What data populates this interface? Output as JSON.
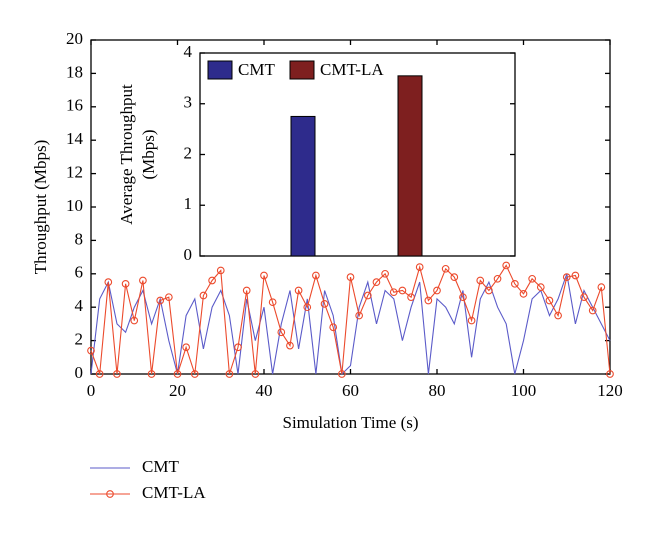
{
  "chart_data": [
    {
      "type": "line",
      "xlabel": "Simulation Time (s)",
      "ylabel": "Throughput (Mbps)",
      "xlim": [
        0,
        120
      ],
      "xticks": [
        0,
        20,
        40,
        60,
        80,
        100,
        120
      ],
      "ylim": [
        0,
        20
      ],
      "yticks": [
        0,
        2,
        4,
        6,
        8,
        10,
        12,
        14,
        16,
        18,
        20
      ],
      "x": [
        0,
        2,
        4,
        6,
        8,
        10,
        12,
        14,
        16,
        18,
        20,
        22,
        24,
        26,
        28,
        30,
        32,
        34,
        36,
        38,
        40,
        42,
        44,
        46,
        48,
        50,
        52,
        54,
        56,
        58,
        60,
        62,
        64,
        66,
        68,
        70,
        72,
        74,
        76,
        78,
        80,
        82,
        84,
        86,
        88,
        90,
        92,
        94,
        96,
        98,
        100,
        102,
        104,
        106,
        108,
        110,
        112,
        114,
        116,
        118,
        120
      ],
      "legend": "bottom-left",
      "series": [
        {
          "name": "CMT",
          "color": "#5b5bc9",
          "marker": "none",
          "values": [
            0,
            4.5,
            5.5,
            3.0,
            2.5,
            4.0,
            5.0,
            3.0,
            4.5,
            2.0,
            0,
            3.5,
            4.5,
            1.5,
            4.0,
            5.0,
            3.5,
            0,
            4.5,
            2.0,
            4.0,
            0,
            3.0,
            5.0,
            1.5,
            4.5,
            0,
            5.0,
            3.5,
            0,
            0.5,
            4.0,
            5.5,
            3.0,
            5.0,
            4.5,
            2.0,
            4.0,
            5.5,
            0,
            4.5,
            4.0,
            3.0,
            5.0,
            1.0,
            4.5,
            5.5,
            4.0,
            3.0,
            0,
            2.0,
            4.5,
            5.0,
            3.5,
            4.5,
            6.0,
            3.0,
            5.0,
            4.0,
            3.0,
            2.0
          ]
        },
        {
          "name": "CMT-LA",
          "color": "#ec4a2c",
          "marker": "circle",
          "values": [
            1.4,
            0,
            5.5,
            0,
            5.4,
            3.2,
            5.6,
            0,
            4.4,
            4.6,
            0,
            1.6,
            0,
            4.7,
            5.6,
            6.2,
            0,
            1.6,
            5.0,
            0,
            5.9,
            4.3,
            2.5,
            1.7,
            5.0,
            4.0,
            5.9,
            4.2,
            2.8,
            0,
            5.8,
            3.5,
            4.7,
            5.5,
            6.0,
            4.9,
            5.0,
            4.6,
            6.4,
            4.4,
            5.0,
            6.3,
            5.8,
            4.6,
            3.2,
            5.6,
            5.0,
            5.7,
            6.5,
            5.4,
            4.8,
            5.7,
            5.2,
            4.4,
            3.5,
            5.8,
            5.9,
            4.6,
            3.8,
            5.2,
            0
          ]
        }
      ]
    },
    {
      "type": "bar",
      "ylabel": [
        "Average Throughput",
        "(Mbps)"
      ],
      "ylim": [
        0,
        4
      ],
      "yticks": [
        0,
        1,
        2,
        3,
        4
      ],
      "legend": "top",
      "series": [
        {
          "name": "CMT",
          "color": "#2e2b8c",
          "values": [
            2.75
          ]
        },
        {
          "name": "CMT-LA",
          "color": "#7e1f1f",
          "values": [
            3.55
          ]
        }
      ]
    }
  ]
}
